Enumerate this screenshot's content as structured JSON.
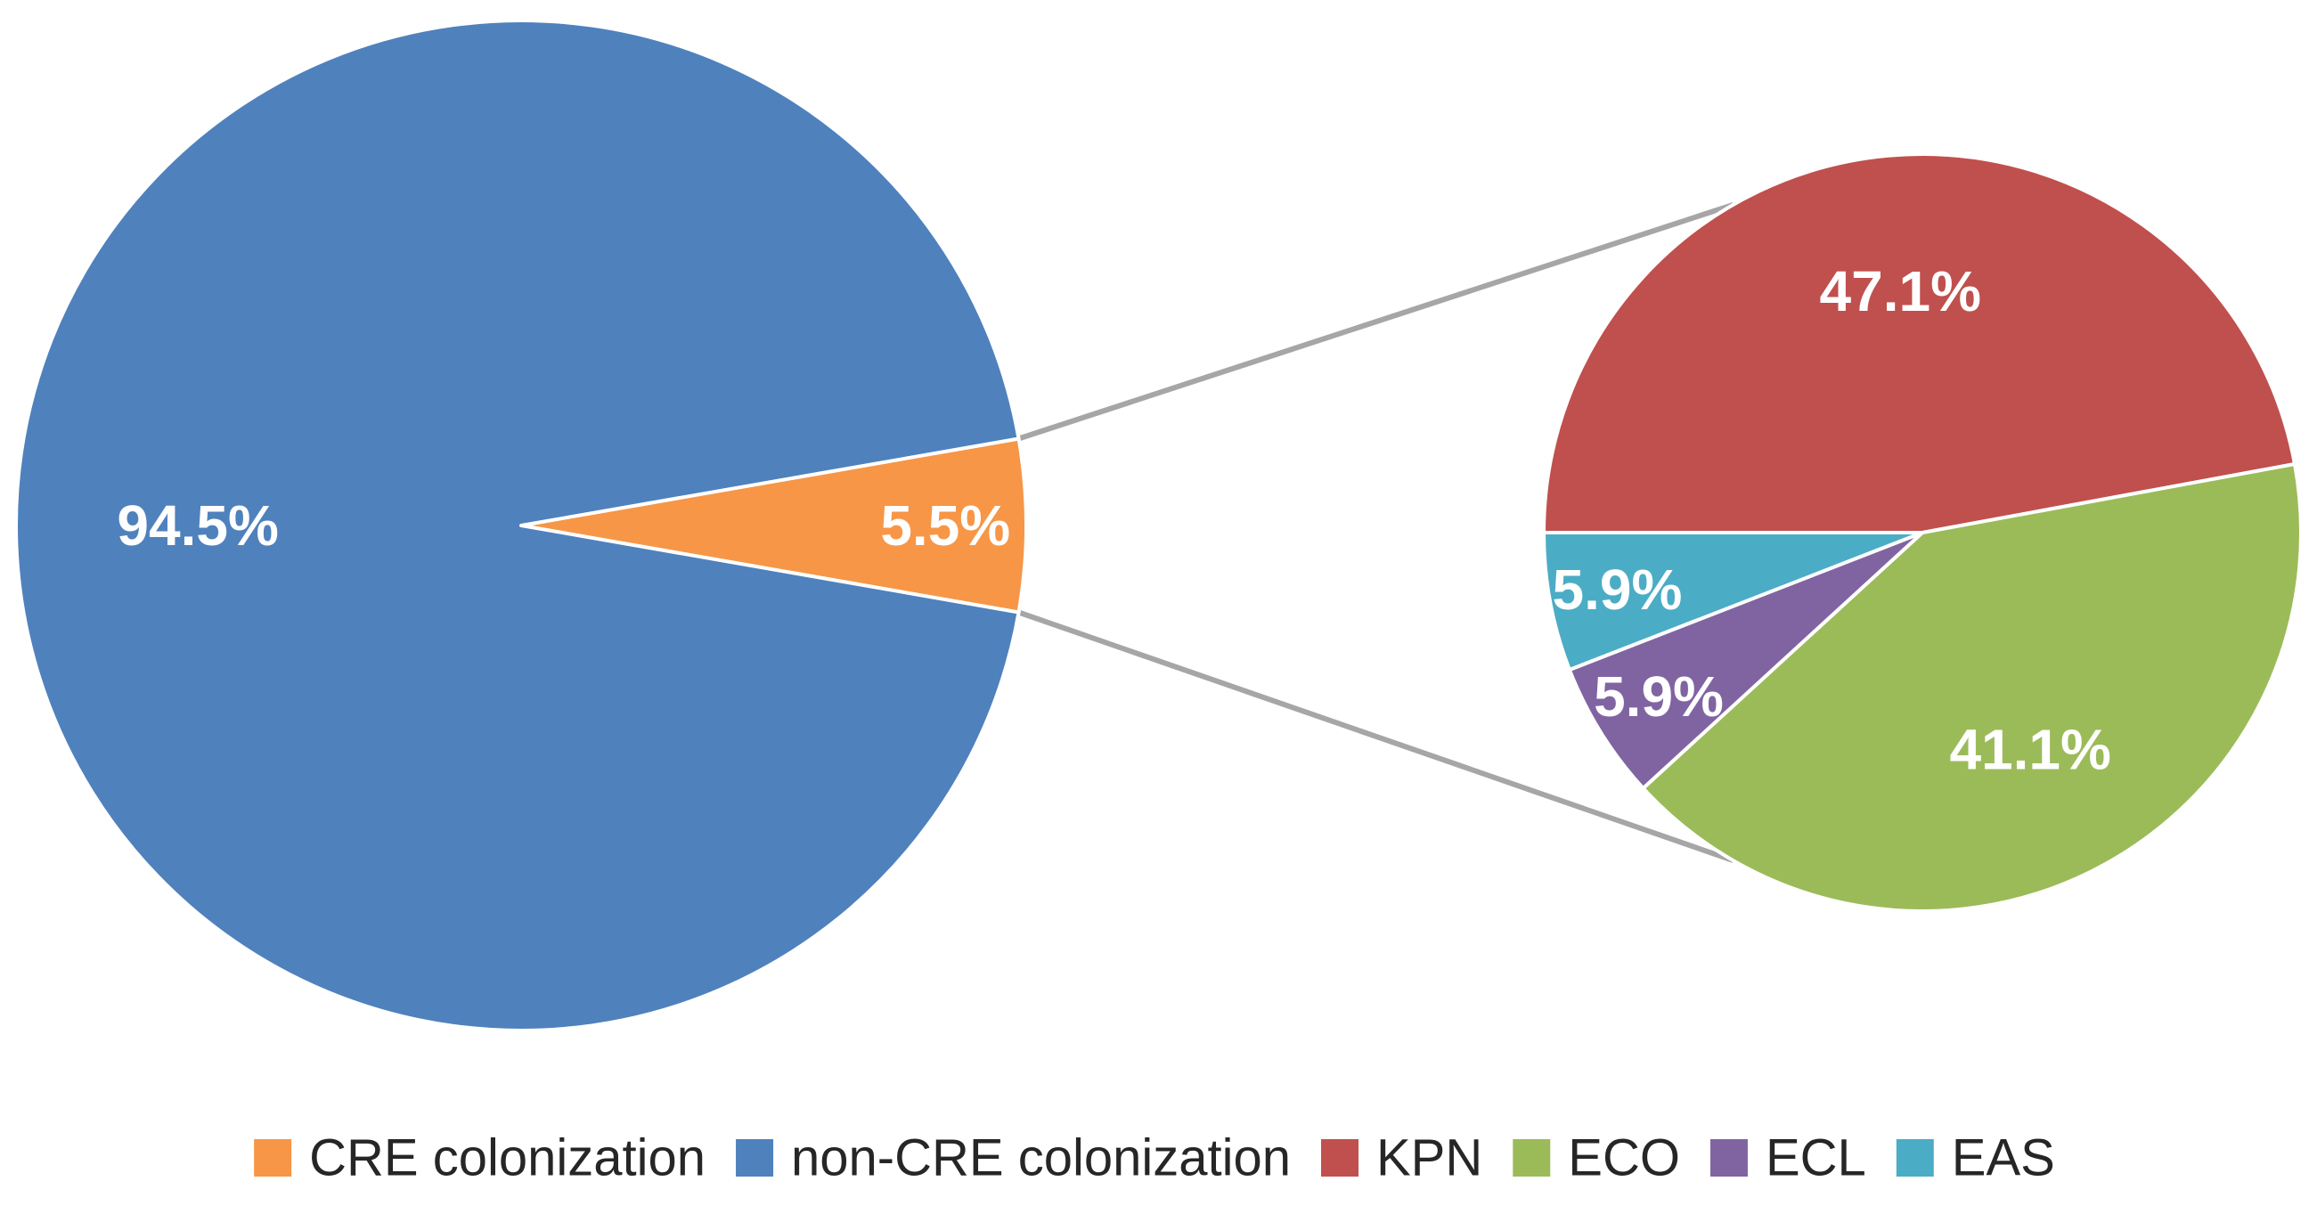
{
  "chart_data": [
    {
      "type": "pie",
      "categories": [
        "CRE colonization",
        "non-CRE colonization"
      ],
      "values": [
        5.5,
        94.5
      ],
      "labels": [
        "5.5%",
        "94.5%"
      ],
      "colors": [
        "#F79646",
        "#4F81BD"
      ]
    },
    {
      "type": "pie",
      "categories": [
        "KPN",
        "ECO",
        "ECL",
        "EAS"
      ],
      "values": [
        47.1,
        41.1,
        5.9,
        5.9
      ],
      "labels": [
        "47.1%",
        "41.1%",
        "5.9%",
        "5.9%"
      ],
      "colors": [
        "#C0504D",
        "#9BBB59",
        "#8064A2",
        "#4BACC6"
      ],
      "exploded_from": "CRE colonization"
    }
  ],
  "legend": {
    "placement": "bottom",
    "items": [
      {
        "label": "CRE colonization",
        "color": "#F79646"
      },
      {
        "label": "non-CRE colonization",
        "color": "#4F81BD"
      },
      {
        "label": "KPN",
        "color": "#C0504D"
      },
      {
        "label": "ECO",
        "color": "#9BBB59"
      },
      {
        "label": "ECL",
        "color": "#8064A2"
      },
      {
        "label": "EAS",
        "color": "#4BACC6"
      }
    ]
  }
}
